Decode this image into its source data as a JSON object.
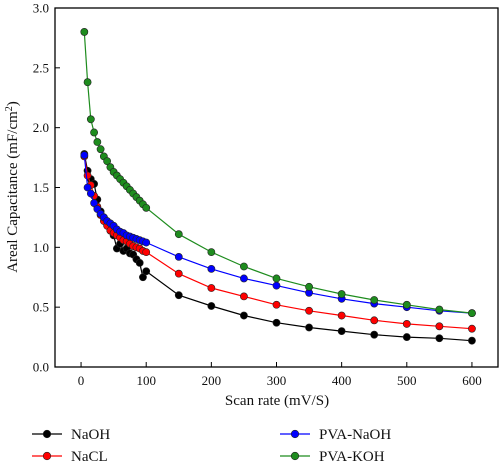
{
  "chart_data": {
    "type": "line",
    "title": "",
    "xlabel": "Scan rate (mV/S)",
    "ylabel_main": "Areal Capacitance (mF/cm",
    "ylabel_sup": "2",
    "ylabel_close": ")",
    "xlim": [
      -40,
      640
    ],
    "ylim": [
      0.0,
      3.0
    ],
    "xticks": [
      0,
      100,
      200,
      300,
      400,
      500,
      600
    ],
    "yticks": [
      0.0,
      0.5,
      1.0,
      1.5,
      2.0,
      2.5,
      3.0
    ],
    "ytick_labels": [
      "0.0",
      "0.5",
      "1.0",
      "1.5",
      "2.0",
      "2.5",
      "3.0"
    ],
    "legend_position": "bottom",
    "series": [
      {
        "name": "NaOH",
        "color": "#000000",
        "x": [
          5,
          10,
          15,
          20,
          25,
          30,
          35,
          40,
          45,
          50,
          55,
          60,
          65,
          70,
          75,
          80,
          85,
          90,
          95,
          100,
          150,
          200,
          250,
          300,
          350,
          400,
          450,
          500,
          550,
          600
        ],
        "y": [
          1.78,
          1.64,
          1.57,
          1.53,
          1.4,
          1.3,
          1.25,
          1.2,
          1.14,
          1.1,
          0.99,
          1.03,
          0.97,
          0.99,
          0.95,
          0.94,
          0.9,
          0.87,
          0.75,
          0.8,
          0.6,
          0.51,
          0.43,
          0.37,
          0.33,
          0.3,
          0.27,
          0.25,
          0.24,
          0.22
        ]
      },
      {
        "name": "NaCL",
        "color": "#ff0000",
        "x": [
          5,
          10,
          15,
          20,
          25,
          30,
          35,
          40,
          45,
          50,
          55,
          60,
          65,
          70,
          75,
          80,
          85,
          90,
          95,
          100,
          150,
          200,
          250,
          300,
          350,
          400,
          450,
          500,
          550,
          600
        ],
        "y": [
          1.76,
          1.6,
          1.52,
          1.43,
          1.34,
          1.27,
          1.22,
          1.18,
          1.14,
          1.12,
          1.1,
          1.08,
          1.06,
          1.05,
          1.03,
          1.01,
          1.0,
          0.99,
          0.97,
          0.96,
          0.78,
          0.66,
          0.59,
          0.52,
          0.47,
          0.43,
          0.39,
          0.36,
          0.34,
          0.32
        ]
      },
      {
        "name": "PVA-NaOH",
        "color": "#0000ff",
        "x": [
          5,
          10,
          15,
          20,
          25,
          30,
          35,
          40,
          45,
          50,
          55,
          60,
          65,
          70,
          75,
          80,
          85,
          90,
          95,
          100,
          150,
          200,
          250,
          300,
          350,
          400,
          450,
          500,
          550,
          600
        ],
        "y": [
          1.77,
          1.5,
          1.45,
          1.37,
          1.32,
          1.28,
          1.25,
          1.22,
          1.2,
          1.18,
          1.15,
          1.13,
          1.12,
          1.1,
          1.09,
          1.08,
          1.07,
          1.06,
          1.05,
          1.04,
          0.92,
          0.82,
          0.74,
          0.68,
          0.62,
          0.57,
          0.53,
          0.5,
          0.47,
          0.45
        ]
      },
      {
        "name": "PVA-KOH",
        "color": "#1e8c1e",
        "x": [
          5,
          10,
          15,
          20,
          25,
          30,
          35,
          40,
          45,
          50,
          55,
          60,
          65,
          70,
          75,
          80,
          85,
          90,
          95,
          100,
          150,
          200,
          250,
          300,
          350,
          400,
          450,
          500,
          550,
          600
        ],
        "y": [
          2.8,
          2.38,
          2.07,
          1.96,
          1.88,
          1.82,
          1.76,
          1.72,
          1.67,
          1.63,
          1.6,
          1.57,
          1.54,
          1.51,
          1.48,
          1.45,
          1.42,
          1.39,
          1.36,
          1.33,
          1.11,
          0.96,
          0.84,
          0.74,
          0.67,
          0.61,
          0.56,
          0.52,
          0.48,
          0.45
        ]
      }
    ]
  }
}
